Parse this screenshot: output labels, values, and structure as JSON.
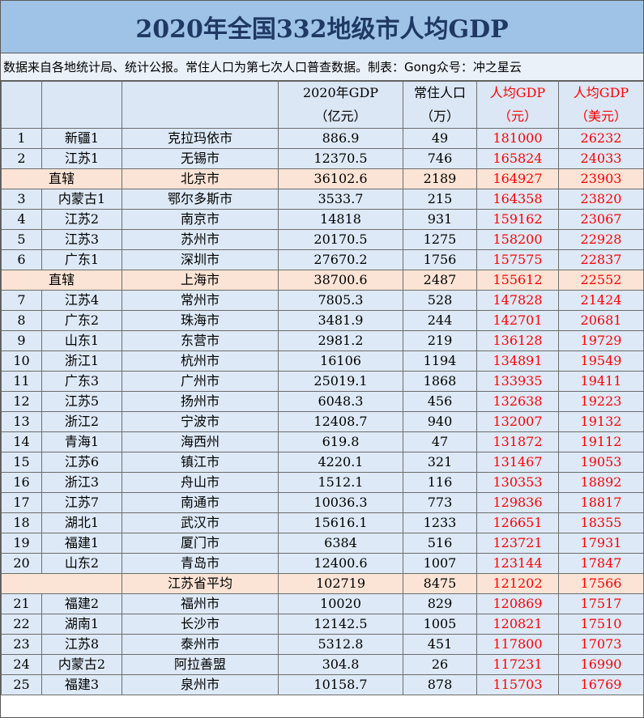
{
  "title": "2020年全国332地级市人均GDP",
  "note": "数据来自各地统计局、统计公报。常住人口为第七次人口普查数据。制表：Gong众号：冲之星云",
  "headers": {
    "gdp_line1": "2020年GDP",
    "gdp_line2": "（亿元）",
    "pop_line1": "常住人口",
    "pop_line2": "（万）",
    "pc_cny_line1": "人均GDP",
    "pc_cny_line2": "（元）",
    "pc_usd_line1": "人均GDP",
    "pc_usd_line2": "（美元）"
  },
  "colors": {
    "title_bg": "#9ec3e6",
    "title_text": "#1f3864",
    "row_bg": "#dde9f6",
    "highlight_bg": "#fbe4d5",
    "accent_red": "#ff0000"
  },
  "rows": [
    {
      "rank": "1",
      "province": "新疆1",
      "city": "克拉玛依市",
      "gdp": "886.9",
      "pop": "49",
      "pc_cny": "181000",
      "pc_usd": "26232"
    },
    {
      "rank": "2",
      "province": "江苏1",
      "city": "无锡市",
      "gdp": "12370.5",
      "pop": "746",
      "pc_cny": "165824",
      "pc_usd": "24033"
    },
    {
      "merged": true,
      "label": "直辖",
      "city": "北京市",
      "gdp": "36102.6",
      "pop": "2189",
      "pc_cny": "164927",
      "pc_usd": "23903"
    },
    {
      "rank": "3",
      "province": "内蒙古1",
      "city": "鄂尔多斯市",
      "gdp": "3533.7",
      "pop": "215",
      "pc_cny": "164358",
      "pc_usd": "23820"
    },
    {
      "rank": "4",
      "province": "江苏2",
      "city": "南京市",
      "gdp": "14818",
      "pop": "931",
      "pc_cny": "159162",
      "pc_usd": "23067"
    },
    {
      "rank": "5",
      "province": "江苏3",
      "city": "苏州市",
      "gdp": "20170.5",
      "pop": "1275",
      "pc_cny": "158200",
      "pc_usd": "22928"
    },
    {
      "rank": "6",
      "province": "广东1",
      "city": "深圳市",
      "gdp": "27670.2",
      "pop": "1756",
      "pc_cny": "157575",
      "pc_usd": "22837"
    },
    {
      "merged": true,
      "label": "直辖",
      "city": "上海市",
      "gdp": "38700.6",
      "pop": "2487",
      "pc_cny": "155612",
      "pc_usd": "22552"
    },
    {
      "rank": "7",
      "province": "江苏4",
      "city": "常州市",
      "gdp": "7805.3",
      "pop": "528",
      "pc_cny": "147828",
      "pc_usd": "21424"
    },
    {
      "rank": "8",
      "province": "广东2",
      "city": "珠海市",
      "gdp": "3481.9",
      "pop": "244",
      "pc_cny": "142701",
      "pc_usd": "20681"
    },
    {
      "rank": "9",
      "province": "山东1",
      "city": "东营市",
      "gdp": "2981.2",
      "pop": "219",
      "pc_cny": "136128",
      "pc_usd": "19729"
    },
    {
      "rank": "10",
      "province": "浙江1",
      "city": "杭州市",
      "gdp": "16106",
      "pop": "1194",
      "pc_cny": "134891",
      "pc_usd": "19549"
    },
    {
      "rank": "11",
      "province": "广东3",
      "city": "广州市",
      "gdp": "25019.1",
      "pop": "1868",
      "pc_cny": "133935",
      "pc_usd": "19411"
    },
    {
      "rank": "12",
      "province": "江苏5",
      "city": "扬州市",
      "gdp": "6048.3",
      "pop": "456",
      "pc_cny": "132638",
      "pc_usd": "19223"
    },
    {
      "rank": "13",
      "province": "浙江2",
      "city": "宁波市",
      "gdp": "12408.7",
      "pop": "940",
      "pc_cny": "132007",
      "pc_usd": "19132"
    },
    {
      "rank": "14",
      "province": "青海1",
      "city": "海西州",
      "gdp": "619.8",
      "pop": "47",
      "pc_cny": "131872",
      "pc_usd": "19112"
    },
    {
      "rank": "15",
      "province": "江苏6",
      "city": "镇江市",
      "gdp": "4220.1",
      "pop": "321",
      "pc_cny": "131467",
      "pc_usd": "19053"
    },
    {
      "rank": "16",
      "province": "浙江3",
      "city": "舟山市",
      "gdp": "1512.1",
      "pop": "116",
      "pc_cny": "130353",
      "pc_usd": "18892"
    },
    {
      "rank": "17",
      "province": "江苏7",
      "city": "南通市",
      "gdp": "10036.3",
      "pop": "773",
      "pc_cny": "129836",
      "pc_usd": "18817"
    },
    {
      "rank": "18",
      "province": "湖北1",
      "city": "武汉市",
      "gdp": "15616.1",
      "pop": "1233",
      "pc_cny": "126651",
      "pc_usd": "18355"
    },
    {
      "rank": "19",
      "province": "福建1",
      "city": "厦门市",
      "gdp": "6384",
      "pop": "516",
      "pc_cny": "123721",
      "pc_usd": "17931"
    },
    {
      "rank": "20",
      "province": "山东2",
      "city": "青岛市",
      "gdp": "12400.6",
      "pop": "1007",
      "pc_cny": "123144",
      "pc_usd": "17847"
    },
    {
      "merged": true,
      "label": "",
      "city": "江苏省平均",
      "gdp": "102719",
      "pop": "8475",
      "pc_cny": "121202",
      "pc_usd": "17566"
    },
    {
      "rank": "21",
      "province": "福建2",
      "city": "福州市",
      "gdp": "10020",
      "pop": "829",
      "pc_cny": "120869",
      "pc_usd": "17517"
    },
    {
      "rank": "22",
      "province": "湖南1",
      "city": "长沙市",
      "gdp": "12142.5",
      "pop": "1005",
      "pc_cny": "120821",
      "pc_usd": "17510"
    },
    {
      "rank": "23",
      "province": "江苏8",
      "city": "泰州市",
      "gdp": "5312.8",
      "pop": "451",
      "pc_cny": "117800",
      "pc_usd": "17073"
    },
    {
      "rank": "24",
      "province": "内蒙古2",
      "city": "阿拉善盟",
      "gdp": "304.8",
      "pop": "26",
      "pc_cny": "117231",
      "pc_usd": "16990"
    },
    {
      "rank": "25",
      "province": "福建3",
      "city": "泉州市",
      "gdp": "10158.7",
      "pop": "878",
      "pc_cny": "115703",
      "pc_usd": "16769"
    }
  ]
}
